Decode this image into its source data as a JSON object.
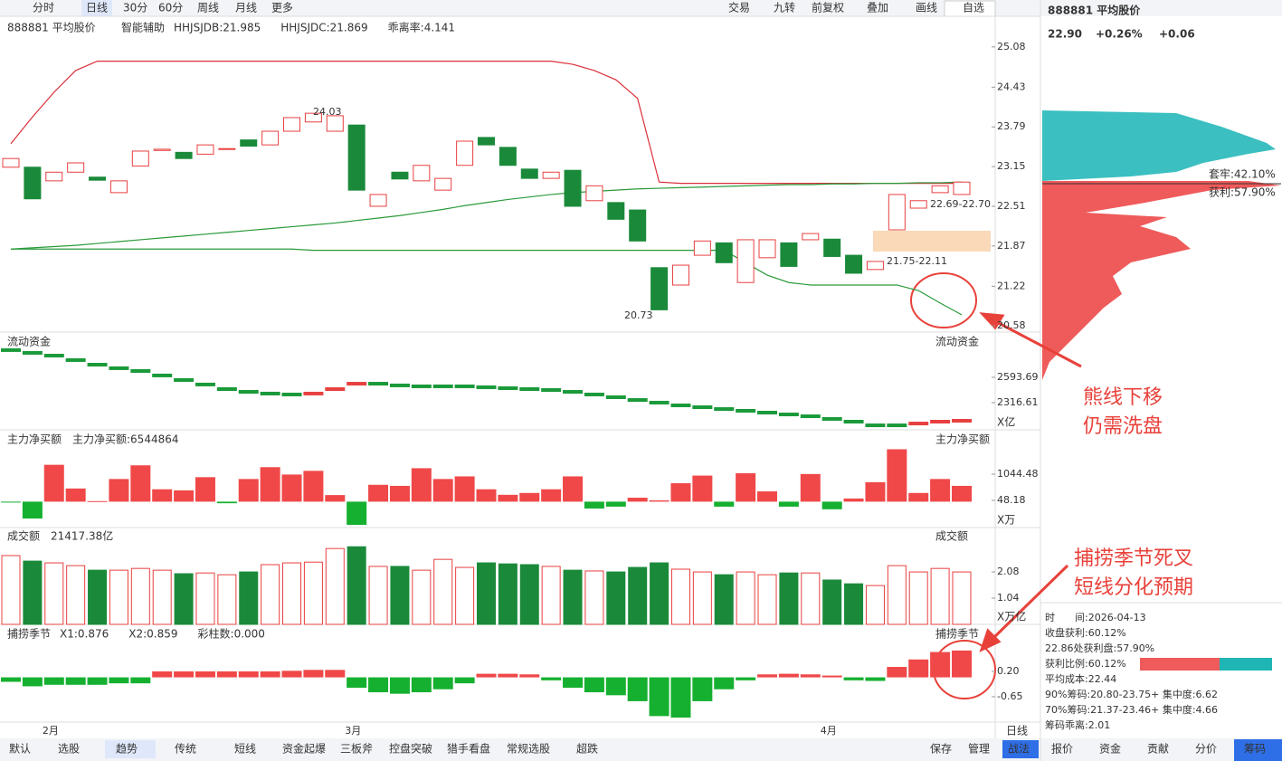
{
  "toolbar": {
    "left": [
      "分时",
      "日线",
      "30分",
      "60分",
      "周线",
      "月线",
      "更多"
    ],
    "right": [
      "交易",
      "九转",
      "前复权",
      "叠加",
      "画线",
      "自选"
    ]
  },
  "assist": "智能辅助",
  "chart_data": [
    {
      "type": "candlestick",
      "title": "888881 平均股价",
      "indicators": [
        {
          "text": "HHJSJDB:21.985",
          "color": "#d08a00"
        },
        {
          "text": "HHJSJDC:21.869",
          "color": "#e03030"
        },
        {
          "text": "乖离率:4.141",
          "color": "#d08a00"
        }
      ],
      "categories": [
        null,
        "2月",
        null,
        null,
        null,
        null,
        null,
        null,
        null,
        null,
        null,
        null,
        null,
        null,
        null,
        "3月",
        null,
        null,
        null,
        null,
        null,
        null,
        null,
        null,
        null,
        null,
        null,
        null,
        null,
        null,
        null,
        null,
        null,
        null,
        null,
        null,
        null,
        "4月",
        null,
        null,
        null,
        null,
        null,
        null,
        null
      ],
      "open": [
        23.14,
        23.14,
        22.92,
        23.06,
        22.98,
        22.73,
        23.16,
        23.41,
        23.38,
        23.35,
        23.43,
        23.58,
        23.5,
        23.72,
        23.87,
        23.72,
        23.82,
        22.51,
        23.06,
        22.92,
        22.77,
        23.17,
        23.62,
        23.46,
        23.11,
        22.96,
        23.09,
        22.6,
        22.57,
        22.45,
        21.52,
        21.24,
        21.72,
        21.92,
        21.28,
        21.68,
        21.92,
        21.97,
        21.98,
        21.72,
        21.49,
        22.13,
        22.48,
        22.73,
        22.7
      ],
      "close": [
        23.28,
        22.63,
        23.06,
        23.21,
        22.93,
        22.92,
        23.4,
        23.43,
        23.28,
        23.5,
        23.44,
        23.48,
        23.72,
        23.94,
        24.01,
        23.97,
        22.77,
        22.7,
        22.95,
        23.17,
        22.96,
        23.56,
        23.5,
        23.17,
        22.96,
        23.06,
        22.51,
        22.84,
        22.3,
        21.95,
        20.84,
        21.56,
        21.95,
        21.6,
        21.97,
        21.97,
        21.54,
        22.07,
        21.7,
        21.43,
        21.62,
        22.7,
        22.6,
        22.84,
        22.9
      ],
      "lines": [
        {
          "color": "#d9303a",
          "values": [
            23.52,
            23.95,
            24.35,
            24.7,
            24.85,
            24.85,
            24.85,
            24.85,
            24.85,
            24.85,
            24.85,
            24.85,
            24.85,
            24.85,
            24.85,
            24.85,
            24.85,
            24.85,
            24.85,
            24.85,
            24.85,
            24.85,
            24.85,
            24.85,
            24.85,
            24.85,
            24.8,
            24.7,
            24.55,
            24.25,
            22.9,
            22.88,
            22.88,
            22.88,
            22.88,
            22.88,
            22.88,
            22.88,
            22.88,
            22.88,
            22.88,
            22.88,
            22.88,
            22.88,
            22.88
          ]
        },
        {
          "color": "#2a9a3a",
          "values": [
            21.82,
            21.84,
            21.86,
            21.88,
            21.91,
            21.94,
            21.97,
            22.0,
            22.03,
            22.06,
            22.09,
            22.12,
            22.15,
            22.18,
            22.21,
            22.24,
            22.28,
            22.32,
            22.36,
            22.41,
            22.46,
            22.52,
            22.57,
            22.62,
            22.66,
            22.7,
            22.73,
            22.75,
            22.77,
            22.79,
            22.8,
            22.81,
            22.82,
            22.83,
            22.84,
            22.85,
            22.86,
            22.86,
            22.87,
            22.87,
            22.88,
            22.88,
            22.89,
            22.89,
            22.9
          ]
        },
        {
          "color": "#2a9a3a",
          "values": [
            21.82,
            21.82,
            21.82,
            21.82,
            21.82,
            21.82,
            21.82,
            21.82,
            21.82,
            21.82,
            21.82,
            21.82,
            21.82,
            21.82,
            21.8,
            21.8,
            21.8,
            21.8,
            21.8,
            21.8,
            21.8,
            21.8,
            21.8,
            21.8,
            21.8,
            21.8,
            21.8,
            21.8,
            21.8,
            21.8,
            21.8,
            21.8,
            21.8,
            21.8,
            21.6,
            21.4,
            21.28,
            21.24,
            21.24,
            21.24,
            21.24,
            21.24,
            21.15,
            20.95,
            20.76
          ]
        }
      ],
      "annotations": [
        "24.03",
        "20.73",
        "22.69-22.70",
        "21.75-22.11"
      ],
      "up_color": "#e84040",
      "down_color": "#1a8a3a",
      "ylim": [
        20.51,
        25.18
      ],
      "yticks": [
        25.08,
        24.43,
        23.79,
        23.15,
        22.51,
        21.87,
        21.22,
        20.58
      ]
    },
    {
      "type": "step",
      "title": "流动资金",
      "values": [
        2891,
        2861,
        2831,
        2782,
        2732,
        2693,
        2663,
        2614,
        2564,
        2515,
        2465,
        2435,
        2416,
        2406,
        2416,
        2465,
        2524,
        2524,
        2505,
        2495,
        2495,
        2495,
        2485,
        2475,
        2465,
        2455,
        2435,
        2406,
        2376,
        2346,
        2317,
        2287,
        2267,
        2247,
        2228,
        2208,
        2188,
        2168,
        2139,
        2109,
        2069,
        2069,
        2089,
        2109,
        2119
      ],
      "ylim": [
        2020,
        2910
      ],
      "yticks": [
        2593.69,
        2316.61
      ],
      "unit": "X亿"
    },
    {
      "type": "bar",
      "title": "主力净买额",
      "indicators": [
        {
          "text": "主力净买额:6544864",
          "color": "#e03030"
        }
      ],
      "values": [
        -20,
        -640,
        1400,
        500,
        20,
        860,
        1380,
        470,
        430,
        930,
        -60,
        860,
        1310,
        1030,
        1170,
        250,
        -880,
        640,
        600,
        1270,
        860,
        960,
        470,
        260,
        330,
        470,
        960,
        -260,
        -190,
        150,
        50,
        700,
        990,
        -190,
        1080,
        390,
        -190,
        1050,
        -290,
        120,
        740,
        1990,
        330,
        860,
        600
      ],
      "ylim": [
        -983,
        2041
      ],
      "yticks": [
        1044.48,
        48.18
      ],
      "unit": "X万"
    },
    {
      "type": "volume",
      "title": "成交额",
      "indicators": [
        {
          "text": "21417.38亿",
          "color": "#333333"
        }
      ],
      "values": [
        2.73,
        2.51,
        2.44,
        2.33,
        2.15,
        2.15,
        2.22,
        2.15,
        2.01,
        2.04,
        1.97,
        2.08,
        2.37,
        2.44,
        2.47,
        3.01,
        3.08,
        2.3,
        2.3,
        2.15,
        2.58,
        2.26,
        2.44,
        2.4,
        2.37,
        2.3,
        2.15,
        2.12,
        2.08,
        2.26,
        2.44,
        2.19,
        2.08,
        1.97,
        2.08,
        1.97,
        2.04,
        2.04,
        1.76,
        1.61,
        1.54,
        2.33,
        2.08,
        2.22,
        2.08
      ],
      "ylim": [
        0,
        3.16
      ],
      "yticks": [
        2.08,
        1.04
      ],
      "unit": "X万亿"
    },
    {
      "type": "bar",
      "title": "捕捞季节",
      "indicators": [
        {
          "text": "X1:0.876",
          "color": "#e8a000"
        },
        {
          "text": "X2:0.859",
          "color": "#c020c0"
        },
        {
          "text": "彩柱数:0.000",
          "color": "#2a9a3a"
        }
      ],
      "values": [
        -0.15,
        -0.3,
        -0.25,
        -0.25,
        -0.25,
        -0.2,
        -0.2,
        0.2,
        0.2,
        0.2,
        0.2,
        0.2,
        0.2,
        0.22,
        0.25,
        0.25,
        -0.35,
        -0.5,
        -0.55,
        -0.5,
        -0.4,
        -0.2,
        0.12,
        0.12,
        0.1,
        -0.1,
        -0.35,
        -0.5,
        -0.6,
        -0.8,
        -1.3,
        -1.35,
        -0.8,
        -0.4,
        -0.1,
        0.1,
        0.12,
        0.1,
        0.06,
        -0.1,
        -0.12,
        0.35,
        0.6,
        0.85,
        0.9
      ],
      "ylim": [
        -1.41,
        1.11
      ],
      "yticks": [
        {
          "value": 0.2,
          "label": "0.20"
        },
        -0.65
      ]
    }
  ],
  "period": "日线",
  "bottom_tabs": {
    "left": [
      "默认",
      "选股",
      "趋势",
      "传统",
      "短线",
      "资金起爆",
      "三板斧",
      "控盘突破",
      "猎手看盘",
      "常规选股",
      "超跌"
    ],
    "right": [
      "保存",
      "管理",
      "战法"
    ]
  },
  "side": {
    "title": "888881 平均股价",
    "price": "22.90",
    "pct": "+0.26%",
    "change": "+0.06",
    "trapped": "套牢:42.10%",
    "profit": "获利:57.90%",
    "info": [
      "时　　间:2026-04-13",
      "收盘获利:60.12%",
      "22.86处获利盘:57.90%",
      "获利比例:60.12%",
      "平均成本:22.44",
      "90%筹码:20.80-23.75+ 集中度:6.62",
      "70%筹码:21.37-23.46+ 集中度:4.66",
      "筹码乖离:2.01"
    ],
    "tabs": [
      "报价",
      "资金",
      "贡献",
      "分价",
      "筹码"
    ]
  },
  "notes": [
    [
      "熊线下移",
      "仍需洗盘"
    ],
    [
      "捕捞季节死叉",
      "短线分化预期"
    ]
  ]
}
